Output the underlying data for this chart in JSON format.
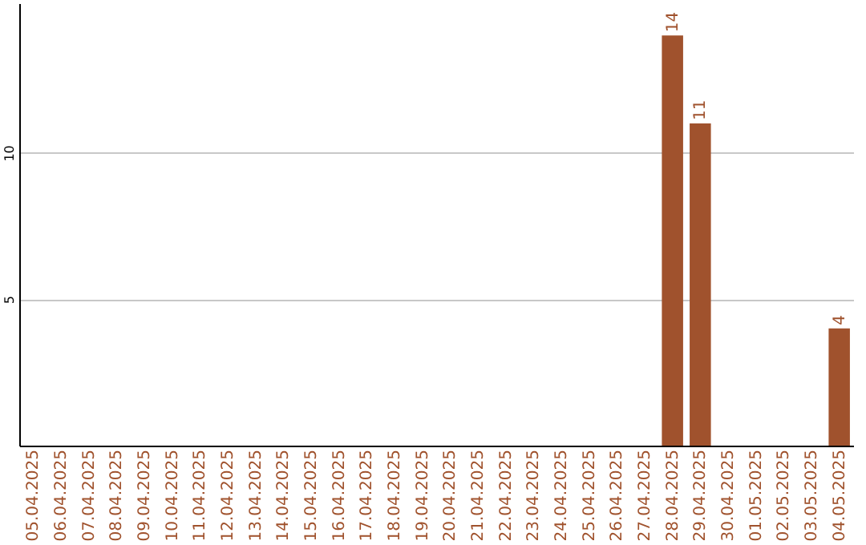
{
  "chart_data": {
    "type": "bar",
    "categories": [
      "05.04.2025",
      "06.04.2025",
      "07.04.2025",
      "08.04.2025",
      "09.04.2025",
      "10.04.2025",
      "11.04.2025",
      "12.04.2025",
      "13.04.2025",
      "14.04.2025",
      "15.04.2025",
      "16.04.2025",
      "17.04.2025",
      "18.04.2025",
      "19.04.2025",
      "20.04.2025",
      "21.04.2025",
      "22.04.2025",
      "23.04.2025",
      "24.04.2025",
      "25.04.2025",
      "26.04.2025",
      "27.04.2025",
      "28.04.2025",
      "29.04.2025",
      "30.04.2025",
      "01.05.2025",
      "02.05.2025",
      "03.05.2025",
      "04.05.2025"
    ],
    "values": [
      0,
      0,
      0,
      0,
      0,
      0,
      0,
      0,
      0,
      0,
      0,
      0,
      0,
      0,
      0,
      0,
      0,
      0,
      0,
      0,
      0,
      0,
      0,
      14,
      11,
      0,
      0,
      0,
      0,
      4
    ],
    "value_labels": [
      null,
      null,
      null,
      null,
      null,
      null,
      null,
      null,
      null,
      null,
      null,
      null,
      null,
      null,
      null,
      null,
      null,
      null,
      null,
      null,
      null,
      null,
      null,
      "14",
      "11",
      null,
      null,
      null,
      null,
      "4"
    ],
    "color": "#a0522d",
    "ylim": [
      0,
      15.1
    ],
    "yticks": [
      5,
      10
    ],
    "grid": "y"
  }
}
